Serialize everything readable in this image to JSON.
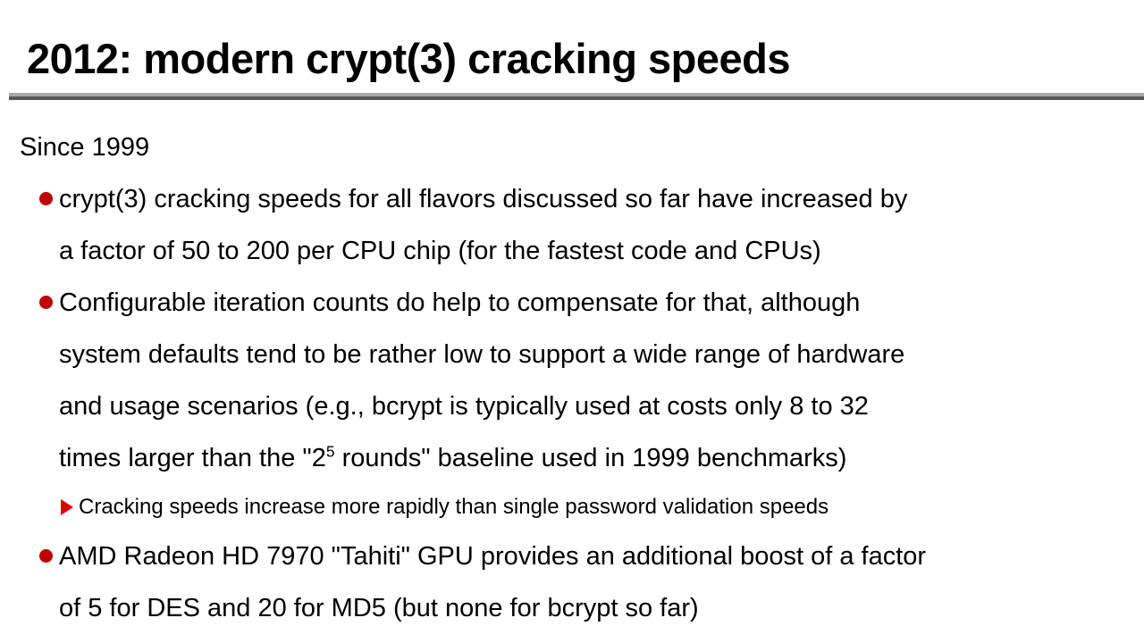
{
  "slide": {
    "title": "2012: modern crypt(3) cracking speeds",
    "intro": "Since 1999",
    "bullets": [
      {
        "marker": "disc",
        "lines": [
          "crypt(3) cracking speeds for all flavors discussed so far have increased by",
          "a factor of 50 to 200 per CPU chip (for the fastest code and CPUs)"
        ]
      },
      {
        "marker": "disc",
        "lines": [
          "Configurable iteration counts do help to compensate for that, although",
          "system defaults tend to be rather low to support a wide range of hardware",
          "and usage scenarios (e.g., bcrypt is typically used at costs only 8 to 32"
        ],
        "sup_line": {
          "pre": "times larger than the \"2",
          "sup": "5",
          "post": " rounds\" baseline used in 1999 benchmarks)"
        }
      },
      {
        "marker": "triangle",
        "lines": [
          "Cracking speeds increase more rapidly than single password validation speeds"
        ]
      },
      {
        "marker": "disc",
        "lines": [
          "AMD Radeon HD 7970 \"Tahiti\" GPU provides an additional boost of a factor",
          "of 5 for DES and 20 for MD5 (but none for bcrypt so far)"
        ]
      }
    ]
  },
  "colors": {
    "background": "#ffffff",
    "text": "#000000",
    "bullet_red": "#c00000",
    "triangle_red": "#e00000",
    "rule_top_gray": "#a8a8a8",
    "rule_bottom_gray": "#585858"
  }
}
